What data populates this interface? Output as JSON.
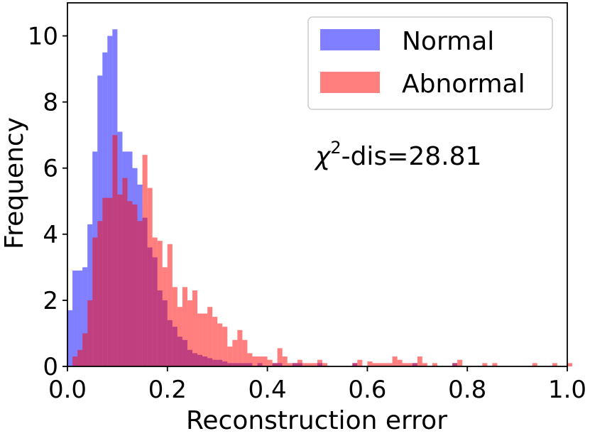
{
  "chart_data": {
    "type": "histogram",
    "xlabel": "Reconstruction error",
    "ylabel": "Frequency",
    "xlim": [
      0.0,
      1.0
    ],
    "ylim": [
      0,
      11
    ],
    "xticks": [
      "0.0",
      "0.2",
      "0.4",
      "0.6",
      "0.8",
      "1.0"
    ],
    "yticks": [
      "0",
      "2",
      "4",
      "6",
      "8",
      "10"
    ],
    "bin_width": 0.01,
    "grid": false,
    "legend_position": "top-right",
    "annotation": {
      "prefix": "χ",
      "sup": "2",
      "suffix": "-dis=28.81"
    },
    "series": [
      {
        "name": "Normal",
        "color": "#0000ff",
        "opacity": 0.5,
        "bins_start": 0.0,
        "values": [
          1.7,
          2.9,
          2.9,
          3.0,
          4.3,
          6.5,
          8.8,
          9.5,
          10.0,
          10.2,
          7.1,
          6.5,
          6.5,
          6.0,
          5.5,
          4.5,
          3.6,
          3.3,
          2.3,
          2.0,
          1.4,
          1.2,
          0.9,
          0.8,
          0.5,
          0.4,
          0.35,
          0.3,
          0.25,
          0.2,
          0.2,
          0.15,
          0.1,
          0.1,
          0.1,
          0.1,
          0.1,
          0,
          0.1,
          0,
          0,
          0.1,
          0.1,
          0,
          0,
          0.1,
          0.1,
          0,
          0,
          0,
          0.1,
          0,
          0,
          0,
          0,
          0,
          0,
          0.1,
          0,
          0,
          0,
          0,
          0,
          0,
          0,
          0,
          0,
          0,
          0,
          0.1,
          0,
          0,
          0,
          0,
          0,
          0,
          0,
          0.1,
          0,
          0,
          0,
          0,
          0,
          0,
          0,
          0,
          0,
          0,
          0,
          0,
          0,
          0,
          0,
          0,
          0,
          0,
          0,
          0,
          0,
          0
        ]
      },
      {
        "name": "Abnormal",
        "color": "#ff0000",
        "opacity": 0.5,
        "bins_start": 0.01,
        "values": [
          0.3,
          0.5,
          1.0,
          2.0,
          3.9,
          4.4,
          5.1,
          5.1,
          7.0,
          5.2,
          5.7,
          5.0,
          4.9,
          4.4,
          6.4,
          5.4,
          3.9,
          3.8,
          3.0,
          3.7,
          2.4,
          1.8,
          2.4,
          2.0,
          2.3,
          1.6,
          1.6,
          1.8,
          1.5,
          1.3,
          1.2,
          0.6,
          0.8,
          1.1,
          0.8,
          0.4,
          0.3,
          0.3,
          0.3,
          0.2,
          0.1,
          0.55,
          0.3,
          0.1,
          0.1,
          0.2,
          0.1,
          0.1,
          0.1,
          0.2,
          0.1,
          0,
          0,
          0,
          0,
          0,
          0.1,
          0.2,
          0,
          0.15,
          0.1,
          0.1,
          0.1,
          0.1,
          0.3,
          0.2,
          0.1,
          0.1,
          0.1,
          0.3,
          0.1,
          0,
          0.1,
          0,
          0,
          0,
          0.1,
          0.2,
          0,
          0,
          0,
          0,
          0.1,
          0,
          0.1,
          0,
          0,
          0,
          0,
          0,
          0,
          0,
          0.1,
          0,
          0,
          0,
          0.1,
          0,
          0,
          0.1
        ]
      }
    ]
  }
}
